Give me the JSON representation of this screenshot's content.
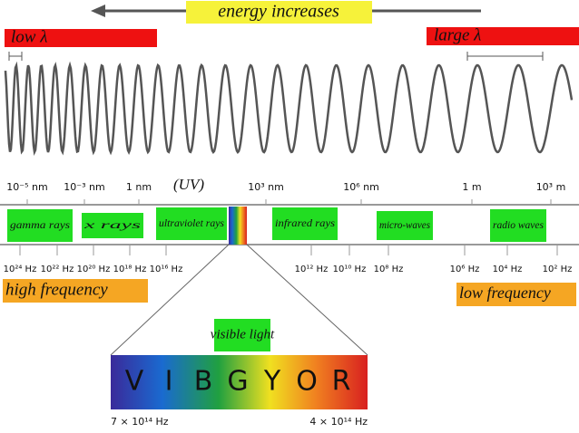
{
  "header": {
    "title": "energy increases",
    "low_wavelength": "low λ",
    "large_wavelength": "large λ"
  },
  "wavelength_labels": [
    "10⁻⁵ nm",
    "10⁻³ nm",
    "1 nm",
    "10³ nm",
    "10⁶ nm",
    "1 m",
    "10³ m"
  ],
  "uv_note": "(UV)",
  "bands": [
    "gamma rays",
    "x rays",
    "ultraviolet rays",
    "infrared rays",
    "micro-waves",
    "radio waves"
  ],
  "frequency_labels": [
    "10²⁴ Hz",
    "10²² Hz",
    "10²⁰ Hz",
    "10¹⁸ Hz",
    "10¹⁶ Hz",
    "10¹² Hz",
    "10¹⁰ Hz",
    "10⁸ Hz",
    "10⁶ Hz",
    "10⁴ Hz",
    "10² Hz"
  ],
  "high_frequency": "high frequency",
  "low_frequency": "low frequency",
  "visible": {
    "label": "visible light",
    "letters": [
      "V",
      "I",
      "B",
      "G",
      "Y",
      "O",
      "R"
    ],
    "left": "7 × 10¹⁴ Hz",
    "right": "4 × 10¹⁴ Hz"
  }
}
